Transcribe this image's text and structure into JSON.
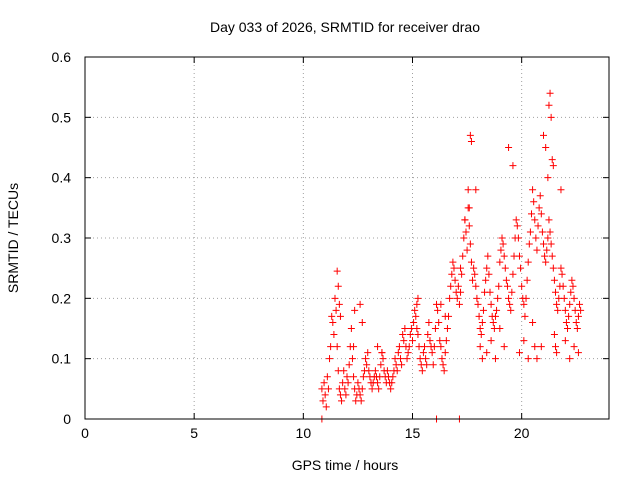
{
  "chart_data": {
    "type": "scatter",
    "title": "Day 033 of 2026, SRMTID for receiver drao",
    "xlabel": "GPS time / hours",
    "ylabel": "SRMTID / TECUs",
    "xlim": [
      0,
      24
    ],
    "ylim": [
      0,
      0.6
    ],
    "xticks": [
      0,
      5,
      10,
      15,
      20
    ],
    "yticks": [
      0,
      0.1,
      0.2,
      0.3,
      0.4,
      0.5,
      0.6
    ],
    "xtick_labels": [
      "0",
      "5",
      "10",
      "15",
      "20"
    ],
    "ytick_labels": [
      "0",
      "0.1",
      "0.2",
      "0.3",
      "0.4",
      "0.5",
      "0.6"
    ],
    "grid": true,
    "marker": "+",
    "series": [
      {
        "name": "SRMTID",
        "color": "#ff0000",
        "x": [
          10.85,
          10.9,
          10.95,
          11.0,
          11.05,
          11.1,
          11.15,
          11.2,
          11.25,
          11.3,
          11.35,
          11.4,
          11.45,
          11.5,
          11.55,
          11.6,
          11.65,
          11.7,
          11.75,
          11.8,
          11.85,
          11.9,
          11.95,
          12.0,
          12.05,
          12.1,
          12.15,
          12.2,
          12.25,
          12.3,
          12.35,
          12.4,
          12.45,
          12.5,
          12.55,
          12.6,
          12.65,
          12.7,
          12.75,
          12.8,
          12.85,
          12.9,
          12.95,
          13.0,
          13.05,
          13.1,
          13.15,
          13.2,
          13.25,
          13.3,
          13.35,
          13.4,
          13.45,
          13.5,
          13.55,
          13.6,
          13.65,
          13.7,
          13.75,
          13.8,
          13.85,
          13.9,
          13.95,
          14.0,
          14.05,
          14.1,
          14.15,
          14.2,
          14.25,
          14.3,
          14.35,
          14.4,
          14.45,
          14.5,
          14.55,
          14.6,
          14.65,
          14.7,
          14.75,
          14.8,
          14.85,
          14.9,
          14.95,
          15.0,
          15.05,
          15.1,
          15.15,
          15.2,
          15.25,
          15.3,
          15.35,
          15.4,
          15.45,
          15.5,
          15.55,
          15.6,
          15.65,
          15.7,
          15.75,
          15.8,
          15.85,
          15.9,
          15.95,
          16.0,
          16.05,
          16.1,
          16.15,
          16.2,
          16.25,
          16.3,
          16.35,
          16.4,
          16.45,
          16.5,
          16.55,
          16.6,
          16.65,
          16.7,
          16.75,
          16.8,
          16.85,
          16.9,
          16.95,
          17.0,
          17.05,
          17.1,
          17.15,
          17.2,
          17.25,
          17.3,
          17.35,
          17.4,
          17.45,
          17.5,
          17.55,
          17.6,
          17.65,
          17.7,
          17.75,
          17.8,
          17.85,
          17.9,
          17.95,
          18.0,
          18.05,
          18.1,
          18.15,
          18.2,
          18.25,
          18.3,
          18.35,
          18.4,
          18.45,
          18.5,
          18.55,
          18.6,
          18.65,
          18.7,
          18.75,
          18.8,
          18.85,
          18.9,
          18.95,
          19.0,
          19.05,
          19.1,
          19.15,
          19.2,
          19.25,
          19.3,
          19.35,
          19.4,
          19.45,
          19.5,
          19.55,
          19.6,
          19.65,
          19.7,
          19.75,
          19.8,
          19.85,
          19.9,
          19.95,
          20.0,
          20.05,
          20.1,
          20.15,
          20.2,
          20.25,
          20.3,
          20.35,
          20.4,
          20.45,
          20.5,
          20.55,
          20.6,
          20.65,
          20.7,
          20.75,
          20.8,
          20.85,
          20.9,
          20.95,
          21.0,
          21.05,
          21.1,
          21.15,
          21.2,
          21.25,
          21.3,
          21.35,
          21.4,
          21.45,
          21.5,
          21.55,
          21.6,
          21.65,
          21.7,
          21.75,
          21.8,
          21.85,
          21.9,
          21.95,
          22.0,
          22.05,
          22.1,
          22.15,
          22.2,
          22.25,
          22.3,
          22.35,
          22.4,
          22.45,
          22.5,
          22.55,
          22.6,
          22.65,
          22.7,
          11.55,
          11.6,
          11.65,
          11.7,
          12.3,
          12.35,
          12.6,
          12.7,
          13.4,
          13.6,
          15.2,
          15.25,
          16.3,
          16.5,
          17.2,
          17.4,
          17.55,
          17.6,
          17.65,
          17.7,
          17.9,
          18.1,
          18.2,
          18.4,
          18.6,
          18.8,
          19.0,
          19.2,
          19.4,
          19.6,
          19.9,
          20.1,
          20.3,
          20.5,
          20.6,
          20.7,
          20.9,
          21.0,
          21.1,
          21.2,
          21.25,
          21.3,
          21.35,
          21.4,
          21.45,
          21.5,
          21.55,
          21.6,
          21.8,
          22.0,
          22.2,
          22.4,
          22.6,
          10.85,
          16.1,
          17.15
        ],
        "y": [
          0.05,
          0.03,
          0.06,
          0.04,
          0.02,
          0.07,
          0.05,
          0.1,
          0.12,
          0.17,
          0.16,
          0.14,
          0.2,
          0.18,
          0.12,
          0.08,
          0.05,
          0.04,
          0.03,
          0.06,
          0.08,
          0.05,
          0.04,
          0.07,
          0.06,
          0.09,
          0.12,
          0.15,
          0.1,
          0.07,
          0.05,
          0.03,
          0.04,
          0.06,
          0.05,
          0.04,
          0.03,
          0.05,
          0.07,
          0.08,
          0.1,
          0.09,
          0.11,
          0.08,
          0.07,
          0.06,
          0.05,
          0.06,
          0.07,
          0.08,
          0.07,
          0.06,
          0.05,
          0.07,
          0.09,
          0.11,
          0.1,
          0.08,
          0.07,
          0.06,
          0.08,
          0.07,
          0.06,
          0.05,
          0.06,
          0.07,
          0.08,
          0.1,
          0.09,
          0.08,
          0.11,
          0.12,
          0.1,
          0.09,
          0.14,
          0.13,
          0.15,
          0.12,
          0.1,
          0.11,
          0.12,
          0.14,
          0.15,
          0.13,
          0.16,
          0.18,
          0.17,
          0.15,
          0.14,
          0.12,
          0.1,
          0.09,
          0.08,
          0.11,
          0.12,
          0.1,
          0.09,
          0.14,
          0.16,
          0.13,
          0.12,
          0.11,
          0.09,
          0.12,
          0.15,
          0.19,
          0.18,
          0.16,
          0.13,
          0.12,
          0.1,
          0.09,
          0.08,
          0.11,
          0.13,
          0.15,
          0.17,
          0.2,
          0.22,
          0.24,
          0.26,
          0.25,
          0.23,
          0.21,
          0.2,
          0.22,
          0.19,
          0.21,
          0.24,
          0.27,
          0.3,
          0.33,
          0.31,
          0.28,
          0.35,
          0.32,
          0.29,
          0.26,
          0.23,
          0.25,
          0.24,
          0.22,
          0.2,
          0.19,
          0.17,
          0.15,
          0.14,
          0.16,
          0.18,
          0.21,
          0.23,
          0.25,
          0.27,
          0.24,
          0.21,
          0.19,
          0.17,
          0.16,
          0.15,
          0.17,
          0.18,
          0.2,
          0.22,
          0.26,
          0.28,
          0.3,
          0.29,
          0.27,
          0.25,
          0.23,
          0.22,
          0.2,
          0.19,
          0.18,
          0.21,
          0.24,
          0.27,
          0.3,
          0.33,
          0.32,
          0.3,
          0.27,
          0.25,
          0.22,
          0.2,
          0.19,
          0.17,
          0.2,
          0.23,
          0.26,
          0.29,
          0.31,
          0.34,
          0.38,
          0.36,
          0.33,
          0.3,
          0.28,
          0.32,
          0.35,
          0.37,
          0.34,
          0.31,
          0.29,
          0.27,
          0.26,
          0.28,
          0.3,
          0.33,
          0.31,
          0.29,
          0.27,
          0.25,
          0.23,
          0.21,
          0.19,
          0.18,
          0.2,
          0.22,
          0.25,
          0.24,
          0.22,
          0.2,
          0.18,
          0.16,
          0.15,
          0.17,
          0.19,
          0.21,
          0.23,
          0.22,
          0.2,
          0.18,
          0.16,
          0.15,
          0.17,
          0.19,
          0.18,
          0.245,
          0.22,
          0.19,
          0.17,
          0.12,
          0.18,
          0.19,
          0.16,
          0.12,
          0.11,
          0.19,
          0.2,
          0.19,
          0.17,
          0.25,
          0.33,
          0.38,
          0.35,
          0.47,
          0.46,
          0.38,
          0.12,
          0.1,
          0.11,
          0.13,
          0.1,
          0.15,
          0.12,
          0.45,
          0.42,
          0.11,
          0.13,
          0.1,
          0.16,
          0.12,
          0.1,
          0.12,
          0.47,
          0.45,
          0.4,
          0.52,
          0.54,
          0.5,
          0.43,
          0.42,
          0.14,
          0.12,
          0.11,
          0.38,
          0.13,
          0.1,
          0.12,
          0.11,
          0,
          0,
          0
        ]
      }
    ]
  }
}
